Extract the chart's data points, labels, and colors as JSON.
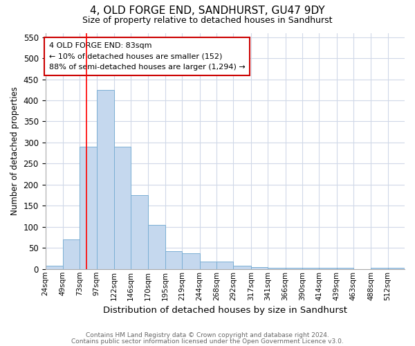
{
  "title1": "4, OLD FORGE END, SANDHURST, GU47 9DY",
  "title2": "Size of property relative to detached houses in Sandhurst",
  "xlabel": "Distribution of detached houses by size in Sandhurst",
  "ylabel": "Number of detached properties",
  "bin_labels": [
    "24sqm",
    "49sqm",
    "73sqm",
    "97sqm",
    "122sqm",
    "146sqm",
    "170sqm",
    "195sqm",
    "219sqm",
    "244sqm",
    "268sqm",
    "292sqm",
    "317sqm",
    "341sqm",
    "366sqm",
    "390sqm",
    "414sqm",
    "439sqm",
    "463sqm",
    "488sqm",
    "512sqm"
  ],
  "bin_edges": [
    24,
    49,
    73,
    97,
    122,
    146,
    170,
    195,
    219,
    244,
    268,
    292,
    317,
    341,
    366,
    390,
    414,
    439,
    463,
    488,
    512,
    536
  ],
  "bar_values": [
    8,
    70,
    290,
    425,
    290,
    175,
    105,
    43,
    38,
    18,
    18,
    8,
    5,
    3,
    3,
    3,
    3,
    3,
    0,
    3,
    3
  ],
  "bar_color": "#c5d8ee",
  "bar_edge_color": "#7bafd4",
  "red_line_x": 83,
  "annotation_text": "4 OLD FORGE END: 83sqm\n← 10% of detached houses are smaller (152)\n88% of semi-detached houses are larger (1,294) →",
  "annotation_box_color": "#ffffff",
  "annotation_box_edge_color": "#cc0000",
  "ylim": [
    0,
    560
  ],
  "yticks": [
    0,
    50,
    100,
    150,
    200,
    250,
    300,
    350,
    400,
    450,
    500,
    550
  ],
  "footer1": "Contains HM Land Registry data © Crown copyright and database right 2024.",
  "footer2": "Contains public sector information licensed under the Open Government Licence v3.0.",
  "bg_color": "#ffffff",
  "grid_color": "#d0d8e8",
  "title_fontsize": 11,
  "subtitle_fontsize": 9
}
